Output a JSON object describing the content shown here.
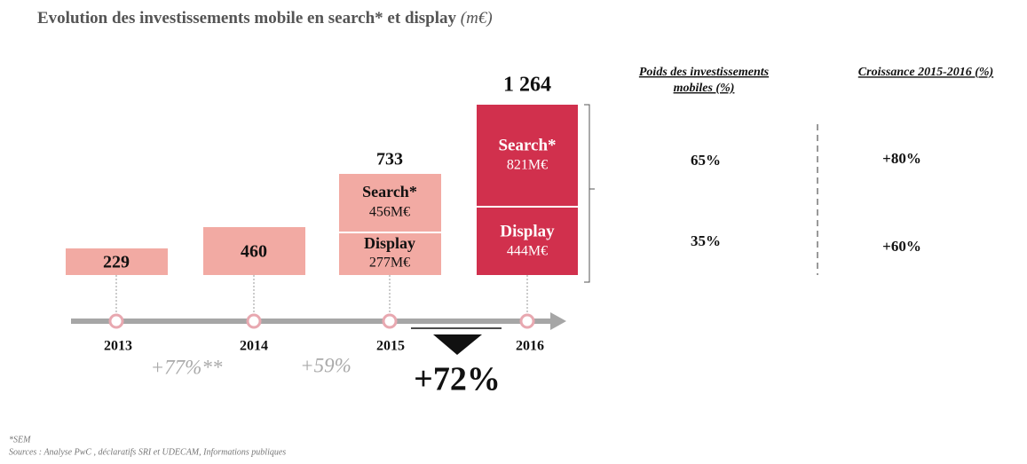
{
  "title": "Evolution des investissements mobile en search* et display",
  "title_unit": "(m€)",
  "years": [
    {
      "year": "2013",
      "total": "229"
    },
    {
      "year": "2014",
      "total": "460"
    },
    {
      "year": "2015",
      "total": "733",
      "segments": [
        {
          "label": "Search*",
          "value": "456M€"
        },
        {
          "label": "Display",
          "value": "277M€"
        }
      ]
    },
    {
      "year": "2016",
      "total": "1 264",
      "segments": [
        {
          "label": "Search*",
          "value": "821M€"
        },
        {
          "label": "Display",
          "value": "444M€"
        }
      ]
    }
  ],
  "growth": [
    "+77%**",
    "+59%"
  ],
  "highlight_growth": "+72%",
  "side_table": {
    "headers": [
      "Poids des investissements mobiles (%)",
      "Croissance  2015-2016 (%)"
    ],
    "rows": [
      [
        "65%",
        "+80%"
      ],
      [
        "35%",
        "+60%"
      ]
    ]
  },
  "footnotes": [
    "*SEM",
    "Sources : Analyse PwC , déclaratifs SRI et UDECAM, Informations publiques"
  ]
}
